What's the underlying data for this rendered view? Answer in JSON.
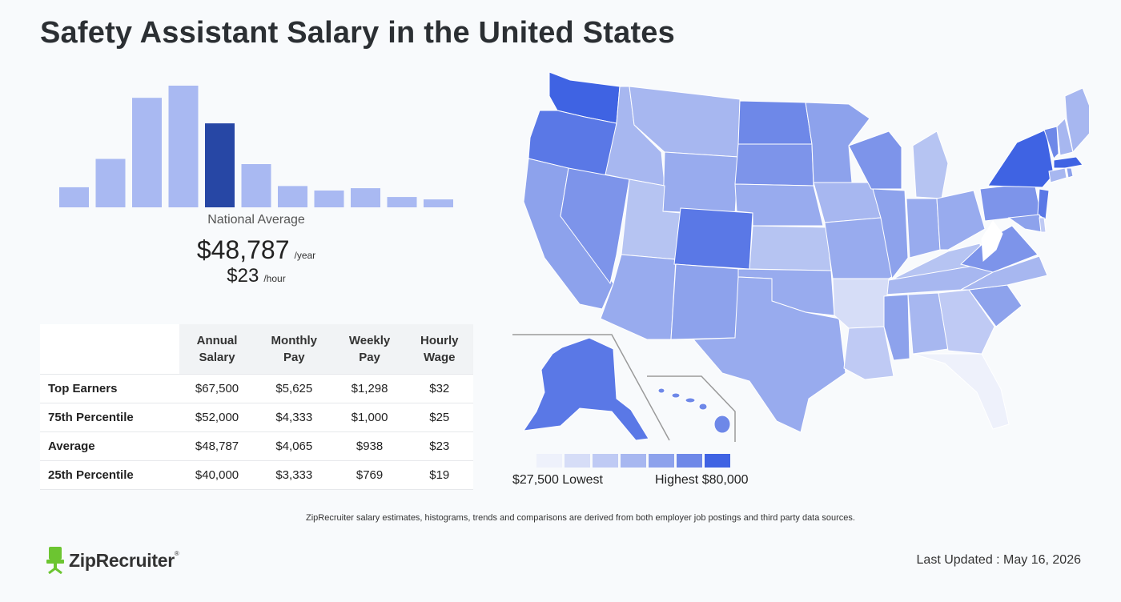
{
  "header": {
    "title": "Safety Assistant Salary in the United States"
  },
  "histogram": {
    "bars": [
      0.165,
      0.398,
      0.9,
      1.0,
      0.69,
      0.355,
      0.175,
      0.138,
      0.157,
      0.085,
      0.065
    ],
    "highlight_index": 4,
    "color": "#a9b9f2",
    "highlight_color": "#2747a5"
  },
  "summary": {
    "label": "National Average",
    "annual": "$48,787",
    "annual_unit": "/year",
    "hourly": "$23",
    "hourly_unit": "/hour"
  },
  "table": {
    "headers": [
      [
        "Annual",
        "Salary"
      ],
      [
        "Monthly",
        "Pay"
      ],
      [
        "Weekly",
        "Pay"
      ],
      [
        "Hourly",
        "Wage"
      ]
    ],
    "rows": [
      {
        "label": "Top Earners",
        "values": [
          "$67,500",
          "$5,625",
          "$1,298",
          "$32"
        ]
      },
      {
        "label": "75th Percentile",
        "values": [
          "$52,000",
          "$4,333",
          "$1,000",
          "$25"
        ]
      },
      {
        "label": "Average",
        "values": [
          "$48,787",
          "$4,065",
          "$938",
          "$23"
        ]
      },
      {
        "label": "25th Percentile",
        "values": [
          "$40,000",
          "$3,333",
          "$769",
          "$19"
        ]
      }
    ]
  },
  "legend": {
    "colors": [
      "#eef1fb",
      "#d6ddf7",
      "#bfcaf4",
      "#a7b7f0",
      "#8da2ec",
      "#6e88e8",
      "#3f63e3"
    ],
    "low": "$27,500 Lowest",
    "high": "Highest $80,000"
  },
  "footer": {
    "disclaimer": "ZipRecruiter salary estimates, histograms, trends and comparisons are derived from both employer job postings and third party data sources.",
    "brand": "ZipRecruiter",
    "updated": "Last Updated : May 16, 2026"
  }
}
